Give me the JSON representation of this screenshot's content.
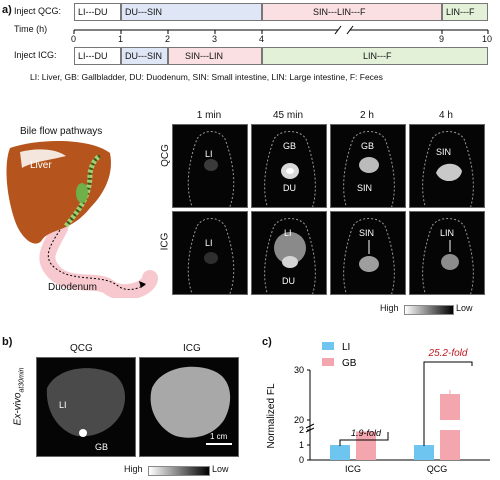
{
  "panel_a": {
    "letter": "a)",
    "qcg_label": "Inject QCG:",
    "icg_label": "Inject ICG:",
    "time_label": "Time (h)",
    "ticks": [
      "0",
      "1",
      "2",
      "3",
      "4",
      "9",
      "10"
    ],
    "qcg_segments": [
      "LI---DU",
      "DU---SIN",
      "SIN---LIN---F",
      "LIN---F"
    ],
    "icg_segments": [
      "LI---DU",
      "DU---SIN",
      "SIN---LIN",
      "LIN---F"
    ],
    "legend_line": "LI: Liver,  GB: Gallbladder,  DU: Duodenum,  SIN: Small intestine,  LIN: Large intestine,  F: Feces",
    "bile_title": "Bile flow pathways",
    "liver_label": "Liver",
    "duodenum_label": "Duodenum",
    "columns": [
      "1 min",
      "45 min",
      "2 h",
      "4 h"
    ],
    "rows": [
      "QCG",
      "ICG"
    ],
    "qcg_labels": [
      "LI",
      "GB",
      "DU",
      "SIN",
      "SIN"
    ],
    "icg_labels": [
      "LI",
      "LI",
      "DU",
      "SIN",
      "LIN"
    ],
    "scale_high": "High",
    "scale_low": "Low",
    "colors": {
      "seg1": "#ffffff",
      "seg2": "#dfe6f6",
      "seg3": "#fbe0e3",
      "seg4": "#e3f1d8",
      "liver": "#b5541c",
      "pink": "#f7c9cf"
    }
  },
  "panel_b": {
    "letter": "b)",
    "ylabel": "Ex-vivo",
    "ylabel_sub": "at30min",
    "columns": [
      "QCG",
      "ICG"
    ],
    "li": "LI",
    "gb": "GB",
    "scalebar": "1 cm",
    "scale_high": "High",
    "scale_low": "Low"
  },
  "chart_data": {
    "type": "bar",
    "letter": "c)",
    "ylabel": "Normalized FL",
    "categories": [
      "ICG",
      "QCG"
    ],
    "series": [
      {
        "name": "LI",
        "values": [
          1,
          1
        ],
        "color": "#6ec6f0"
      },
      {
        "name": "GB",
        "values": [
          1.9,
          25.2
        ],
        "color": "#f4a6ae"
      }
    ],
    "annotations": [
      "1.9-fold",
      "25.2-fold"
    ],
    "yticks": [
      "0",
      "1",
      "2",
      "20",
      "30"
    ],
    "broken_axis": true
  }
}
